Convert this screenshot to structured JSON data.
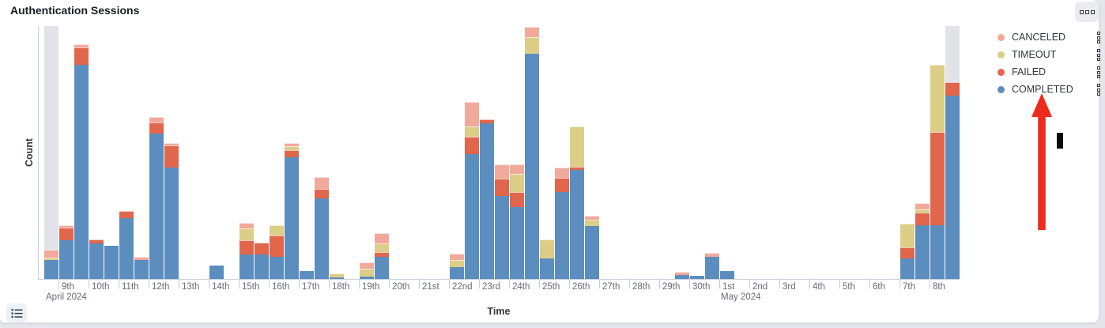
{
  "panel": {
    "title": "Authentication Sessions",
    "options_button_icon": "boxes-horizontal-icon",
    "legend_toggle_icon": "list-icon"
  },
  "colors": {
    "canceled": "#F1A99B",
    "timeout": "#DCCD87",
    "failed": "#E0664C",
    "completed": "#5B8DBE",
    "partial_bucket_gray": "#E1E3E9",
    "annotation_arrow_red": "#EE2B1C",
    "axis_line": "#CCD3DD",
    "tick_text": "#646A79"
  },
  "chart_data": {
    "type": "bar",
    "stacked": true,
    "title": "Authentication Sessions",
    "xlabel": "Time",
    "ylabel": "Count",
    "grid": "off",
    "y_axis_tick_labels": "none shown",
    "legend_position": "right",
    "value_units": "relative height (no y-axis numbers visible in screenshot)",
    "series_order_bottom_to_top": [
      "COMPLETED",
      "FAILED",
      "TIMEOUT",
      "CANCELED"
    ],
    "legend": [
      {
        "label": "CANCELED",
        "color": "#F1A99B"
      },
      {
        "label": "TIMEOUT",
        "color": "#DCCD87"
      },
      {
        "label": "FAILED",
        "color": "#E0664C"
      },
      {
        "label": "COMPLETED",
        "color": "#5B8DBE"
      }
    ],
    "x_axis": {
      "bucket_hours": 12,
      "start_bucket": "Apr 8 2024 PM (partial, grayed)",
      "end_bucket": "May 8 2024 PM (partial, grayed)",
      "day_tick_labels": [
        "9th",
        "10th",
        "11th",
        "12th",
        "13th",
        "14th",
        "15th",
        "16th",
        "17th",
        "18th",
        "19th",
        "20th",
        "21st",
        "22nd",
        "23rd",
        "24th",
        "25th",
        "26th",
        "27th",
        "28th",
        "29th",
        "30th",
        "1st",
        "2nd",
        "3rd",
        "4th",
        "5th",
        "6th",
        "7th",
        "8th"
      ],
      "month_labels": [
        {
          "text": "April 2024",
          "anchor_tick_index": 0
        },
        {
          "text": "May 2024",
          "anchor_tick_index": 22
        }
      ]
    },
    "partial_bucket_indices": [
      0,
      60
    ],
    "bars": [
      {
        "n": 0,
        "bucket": "Apr 8 PM",
        "COMPLETED": 24,
        "FAILED": 0,
        "TIMEOUT": 3,
        "CANCELED": 10
      },
      {
        "n": 1,
        "bucket": "Apr 9 AM",
        "COMPLETED": 49,
        "FAILED": 16,
        "TIMEOUT": 0,
        "CANCELED": 3
      },
      {
        "n": 2,
        "bucket": "Apr 9 PM",
        "COMPLETED": 271,
        "FAILED": 22,
        "TIMEOUT": 0,
        "CANCELED": 4
      },
      {
        "n": 3,
        "bucket": "Apr 10 AM",
        "COMPLETED": 45,
        "FAILED": 5,
        "TIMEOUT": 0,
        "CANCELED": 0
      },
      {
        "n": 4,
        "bucket": "Apr 10 PM",
        "COMPLETED": 42,
        "FAILED": 0,
        "TIMEOUT": 0,
        "CANCELED": 0
      },
      {
        "n": 5,
        "bucket": "Apr 11 AM",
        "COMPLETED": 77,
        "FAILED": 9,
        "TIMEOUT": 0,
        "CANCELED": 0
      },
      {
        "n": 6,
        "bucket": "Apr 11 PM",
        "COMPLETED": 24,
        "FAILED": 0,
        "TIMEOUT": 0,
        "CANCELED": 4
      },
      {
        "n": 7,
        "bucket": "Apr 12 AM",
        "COMPLETED": 184,
        "FAILED": 14,
        "TIMEOUT": 0,
        "CANCELED": 7
      },
      {
        "n": 8,
        "bucket": "Apr 12 PM",
        "COMPLETED": 141,
        "FAILED": 28,
        "TIMEOUT": 0,
        "CANCELED": 3
      },
      {
        "n": 11,
        "bucket": "Apr 14 AM",
        "COMPLETED": 17,
        "FAILED": 0,
        "TIMEOUT": 0,
        "CANCELED": 0
      },
      {
        "n": 13,
        "bucket": "Apr 15 AM",
        "COMPLETED": 31,
        "FAILED": 18,
        "TIMEOUT": 15,
        "CANCELED": 7
      },
      {
        "n": 14,
        "bucket": "Apr 15 PM",
        "COMPLETED": 31,
        "FAILED": 15,
        "TIMEOUT": 0,
        "CANCELED": 0
      },
      {
        "n": 15,
        "bucket": "Apr 16 AM",
        "COMPLETED": 28,
        "FAILED": 27,
        "TIMEOUT": 13,
        "CANCELED": 0
      },
      {
        "n": 16,
        "bucket": "Apr 16 PM",
        "COMPLETED": 154,
        "FAILED": 9,
        "TIMEOUT": 5,
        "CANCELED": 4
      },
      {
        "n": 17,
        "bucket": "Apr 17 AM",
        "COMPLETED": 10,
        "FAILED": 0,
        "TIMEOUT": 0,
        "CANCELED": 0
      },
      {
        "n": 18,
        "bucket": "Apr 17 PM",
        "COMPLETED": 102,
        "FAILED": 12,
        "TIMEOUT": 0,
        "CANCELED": 15
      },
      {
        "n": 19,
        "bucket": "Apr 18 AM",
        "COMPLETED": 2,
        "FAILED": 0,
        "TIMEOUT": 5,
        "CANCELED": 0
      },
      {
        "n": 21,
        "bucket": "Apr 19 AM",
        "COMPLETED": 3,
        "FAILED": 0,
        "TIMEOUT": 10,
        "CANCELED": 8
      },
      {
        "n": 22,
        "bucket": "Apr 19 PM",
        "COMPLETED": 28,
        "FAILED": 6,
        "TIMEOUT": 11,
        "CANCELED": 13
      },
      {
        "n": 27,
        "bucket": "Apr 22 AM",
        "COMPLETED": 15,
        "FAILED": 0,
        "TIMEOUT": 9,
        "CANCELED": 8
      },
      {
        "n": 28,
        "bucket": "Apr 22 PM",
        "COMPLETED": 158,
        "FAILED": 22,
        "TIMEOUT": 13,
        "CANCELED": 31
      },
      {
        "n": 29,
        "bucket": "Apr 23 AM",
        "COMPLETED": 197,
        "FAILED": 5,
        "TIMEOUT": 0,
        "CANCELED": 0
      },
      {
        "n": 30,
        "bucket": "Apr 23 PM",
        "COMPLETED": 105,
        "FAILED": 22,
        "TIMEOUT": 0,
        "CANCELED": 18
      },
      {
        "n": 31,
        "bucket": "Apr 24 AM",
        "COMPLETED": 91,
        "FAILED": 19,
        "TIMEOUT": 23,
        "CANCELED": 12
      },
      {
        "n": 32,
        "bucket": "Apr 24 PM",
        "COMPLETED": 285,
        "FAILED": 0,
        "TIMEOUT": 21,
        "CANCELED": 13
      },
      {
        "n": 33,
        "bucket": "Apr 25 AM",
        "COMPLETED": 26,
        "FAILED": 0,
        "TIMEOUT": 24,
        "CANCELED": 0
      },
      {
        "n": 34,
        "bucket": "Apr 25 PM",
        "COMPLETED": 110,
        "FAILED": 18,
        "TIMEOUT": 0,
        "CANCELED": 13
      },
      {
        "n": 35,
        "bucket": "Apr 26 AM",
        "COMPLETED": 138,
        "FAILED": 4,
        "TIMEOUT": 51,
        "CANCELED": 0
      },
      {
        "n": 36,
        "bucket": "Apr 26 PM",
        "COMPLETED": 67,
        "FAILED": 0,
        "TIMEOUT": 8,
        "CANCELED": 5
      },
      {
        "n": 42,
        "bucket": "Apr 29 PM",
        "COMPLETED": 5,
        "FAILED": 0,
        "TIMEOUT": 0,
        "CANCELED": 4
      },
      {
        "n": 43,
        "bucket": "Apr 30 AM",
        "COMPLETED": 4,
        "FAILED": 0,
        "TIMEOUT": 0,
        "CANCELED": 0
      },
      {
        "n": 44,
        "bucket": "Apr 30 PM",
        "COMPLETED": 28,
        "FAILED": 0,
        "TIMEOUT": 0,
        "CANCELED": 5
      },
      {
        "n": 45,
        "bucket": "May 1 AM",
        "COMPLETED": 10,
        "FAILED": 0,
        "TIMEOUT": 0,
        "CANCELED": 0
      },
      {
        "n": 57,
        "bucket": "May 7 AM",
        "COMPLETED": 26,
        "FAILED": 14,
        "TIMEOUT": 30,
        "CANCELED": 0
      },
      {
        "n": 58,
        "bucket": "May 7 PM",
        "COMPLETED": 68,
        "FAILED": 16,
        "TIMEOUT": 4,
        "CANCELED": 8
      },
      {
        "n": 59,
        "bucket": "May 8 AM",
        "COMPLETED": 68,
        "FAILED": 118,
        "TIMEOUT": 85,
        "CANCELED": 0
      },
      {
        "n": 60,
        "bucket": "May 8 PM",
        "COMPLETED": 232,
        "FAILED": 17,
        "TIMEOUT": 0,
        "CANCELED": 0
      }
    ]
  },
  "annotations": {
    "arrow": "red up-arrow pointing at COMPLETED legend item",
    "cursor": "black I-beam marker"
  }
}
